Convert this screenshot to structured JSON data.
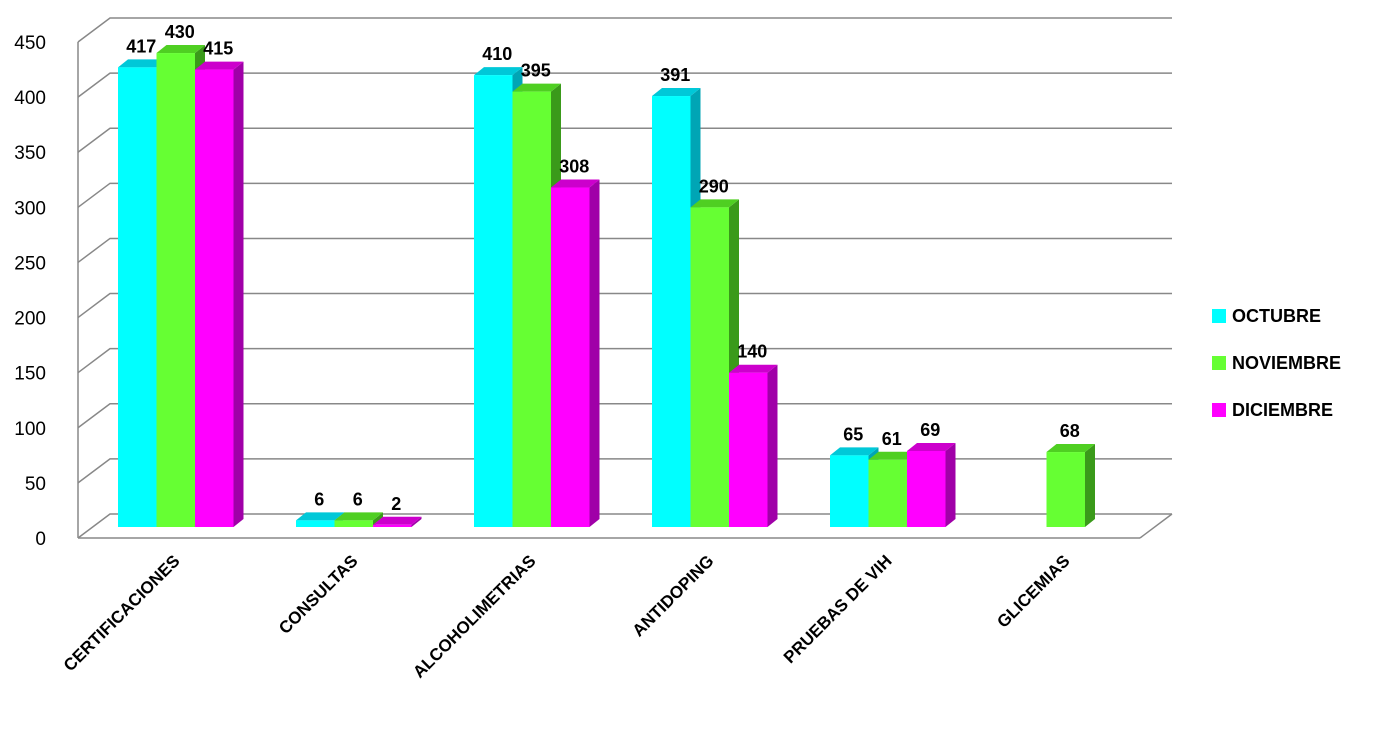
{
  "chart_data": {
    "type": "bar3d",
    "categories": [
      "CERTIFICACIONES",
      "CONSULTAS",
      "ALCOHOLIMETRIAS",
      "ANTIDOPING",
      "PRUEBAS DE VIH",
      "GLICEMIAS"
    ],
    "series": [
      {
        "name": "OCTUBRE",
        "color": "#00ffff",
        "values": [
          417,
          6,
          410,
          391,
          65,
          null
        ]
      },
      {
        "name": "NOVIEMBRE",
        "color": "#66ff33",
        "values": [
          430,
          6,
          395,
          290,
          61,
          68
        ]
      },
      {
        "name": "DICIEMBRE",
        "color": "#ff00ff",
        "values": [
          415,
          2,
          308,
          140,
          69,
          null
        ]
      }
    ],
    "ylim": [
      0,
      450
    ],
    "yticks": [
      0,
      50,
      100,
      150,
      200,
      250,
      300,
      350,
      400,
      450
    ],
    "grid": true,
    "legend": "right"
  }
}
